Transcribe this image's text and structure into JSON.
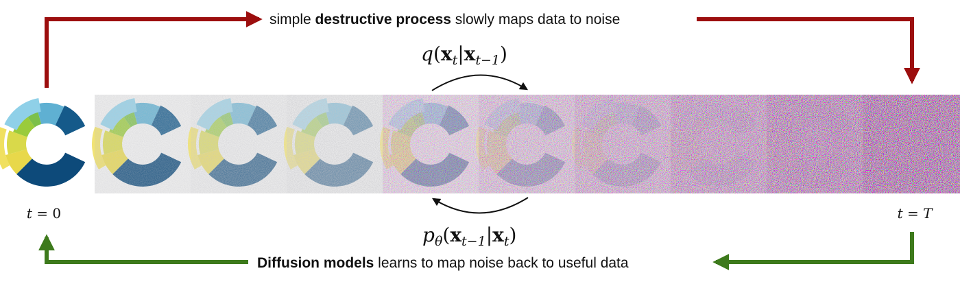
{
  "top_label": {
    "plain_start": "simple ",
    "bold": "destructive process",
    "plain_end": " slowly maps data to noise"
  },
  "forward_process": [
    "q",
    "(",
    "x",
    "t",
    "|",
    "x",
    "t−1",
    ")"
  ],
  "reverse_process": [
    "p",
    "θ",
    "(",
    "x",
    "t−1",
    "|",
    "x",
    "t",
    ")"
  ],
  "start_label": [
    "t",
    " = ",
    "0"
  ],
  "end_label": [
    "t",
    " = ",
    "T"
  ],
  "bottom_label": {
    "bold": "Diffusion models",
    "plain": " learns to map noise back to useful data"
  }
}
